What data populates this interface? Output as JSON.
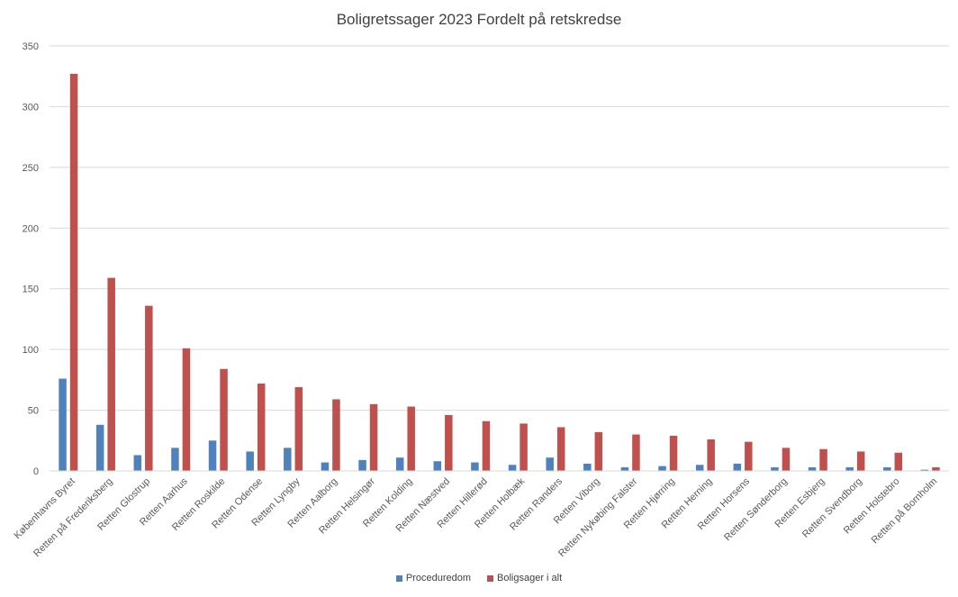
{
  "chart_data": {
    "type": "bar",
    "title": "Boligretssager 2023 Fordelt på retskredse",
    "xlabel": "",
    "ylabel": "",
    "ylim": [
      0,
      350
    ],
    "yticks": [
      0,
      50,
      100,
      150,
      200,
      250,
      300,
      350
    ],
    "grid": true,
    "legend_position": "bottom",
    "categories": [
      "Københavns Byret",
      "Retten på Frederiksberg",
      "Retten Glostrup",
      "Retten Aarhus",
      "Retten Roskilde",
      "Retten Odense",
      "Retten Lyngby",
      "Retten Aalborg",
      "Retten Helsingør",
      "Retten Kolding",
      "Retten Næstved",
      "Retten Hillerød",
      "Retten Holbæk",
      "Retten Randers",
      "Retten Viborg",
      "Retten Nykøbing Falster",
      "Retten Hjørring",
      "Retten Herning",
      "Retten Horsens",
      "Retten Sønderborg",
      "Retten Esbjerg",
      "Retten Svendborg",
      "Retten Holstebro",
      "Retten på Bornholm"
    ],
    "series": [
      {
        "name": "Proceduredom",
        "color": "#4F81BD",
        "values": [
          76,
          38,
          13,
          19,
          25,
          16,
          19,
          7,
          9,
          11,
          8,
          7,
          5,
          11,
          6,
          3,
          4,
          5,
          6,
          3,
          3,
          3,
          3,
          1
        ]
      },
      {
        "name": "Boligsager i alt",
        "color": "#C0504D",
        "values": [
          327,
          159,
          136,
          101,
          84,
          72,
          69,
          59,
          55,
          53,
          46,
          41,
          39,
          36,
          32,
          30,
          29,
          26,
          24,
          19,
          18,
          16,
          15,
          3
        ]
      }
    ]
  }
}
